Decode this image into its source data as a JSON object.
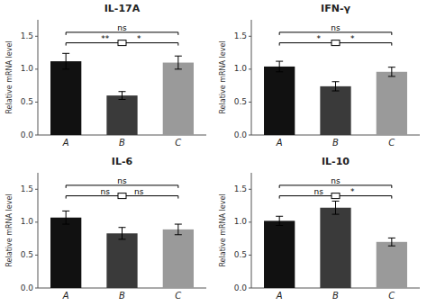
{
  "chart_data": [
    {
      "type": "bar",
      "title": "IL-17A",
      "ylabel": "Relative mRNA level",
      "categories": [
        "A",
        "B",
        "C"
      ],
      "values": [
        1.12,
        0.6,
        1.1
      ],
      "errors": [
        0.12,
        0.06,
        0.1
      ],
      "colors": [
        "#111111",
        "#3a3a3a",
        "#9a9a9a"
      ],
      "annotations": [
        {
          "text": "ns",
          "y": 1.56
        },
        {
          "text": [
            "**",
            "*"
          ],
          "y": 1.4
        }
      ],
      "ylim": [
        0,
        1.75
      ],
      "yticks": [
        {
          "value": 0.0,
          "label": "0.0"
        },
        {
          "value": 0.5,
          "label": "0.5"
        },
        {
          "value": 1.0,
          "label": "1.0"
        },
        {
          "value": 1.5,
          "label": "1.5"
        }
      ],
      "grid": false
    },
    {
      "type": "bar",
      "title": "IFN-γ",
      "ylabel": "Relative mRNA level",
      "categories": [
        "A",
        "B",
        "C"
      ],
      "values": [
        1.04,
        0.74,
        0.96
      ],
      "errors": [
        0.08,
        0.07,
        0.07
      ],
      "colors": [
        "#111111",
        "#3a3a3a",
        "#9a9a9a"
      ],
      "annotations": [
        {
          "text": "ns",
          "y": 1.56
        },
        {
          "text": [
            "*",
            "*"
          ],
          "y": 1.4
        }
      ],
      "ylim": [
        0,
        1.75
      ],
      "yticks": [
        {
          "value": 0.0,
          "label": "0.0"
        },
        {
          "value": 0.5,
          "label": "0.5"
        },
        {
          "value": 1.0,
          "label": "1.0"
        },
        {
          "value": 1.5,
          "label": "1.5"
        }
      ],
      "grid": false
    },
    {
      "type": "bar",
      "title": "IL-6",
      "ylabel": "Relative mRNA level",
      "categories": [
        "A",
        "B",
        "C"
      ],
      "values": [
        1.07,
        0.83,
        0.89
      ],
      "errors": [
        0.1,
        0.09,
        0.08
      ],
      "colors": [
        "#111111",
        "#3a3a3a",
        "#9a9a9a"
      ],
      "annotations": [
        {
          "text": "ns",
          "y": 1.56
        },
        {
          "text": [
            "ns",
            "ns"
          ],
          "y": 1.4
        }
      ],
      "ylim": [
        0,
        1.75
      ],
      "yticks": [
        {
          "value": 0.0,
          "label": "0.0"
        },
        {
          "value": 0.5,
          "label": "0.5"
        },
        {
          "value": 1.0,
          "label": "1.0"
        },
        {
          "value": 1.5,
          "label": "1.5"
        }
      ],
      "grid": false
    },
    {
      "type": "bar",
      "title": "IL-10",
      "ylabel": "Relative mRNA level",
      "categories": [
        "A",
        "B",
        "C"
      ],
      "values": [
        1.02,
        1.22,
        0.7
      ],
      "errors": [
        0.07,
        0.1,
        0.06
      ],
      "colors": [
        "#111111",
        "#3a3a3a",
        "#9a9a9a"
      ],
      "annotations": [
        {
          "text": "ns",
          "y": 1.56
        },
        {
          "text": [
            "ns",
            "*"
          ],
          "y": 1.4
        }
      ],
      "ylim": [
        0,
        1.75
      ],
      "yticks": [
        {
          "value": 0.0,
          "label": "0.0"
        },
        {
          "value": 0.5,
          "label": "0.5"
        },
        {
          "value": 1.0,
          "label": "1.0"
        },
        {
          "value": 1.5,
          "label": "1.5"
        }
      ],
      "grid": false
    }
  ]
}
